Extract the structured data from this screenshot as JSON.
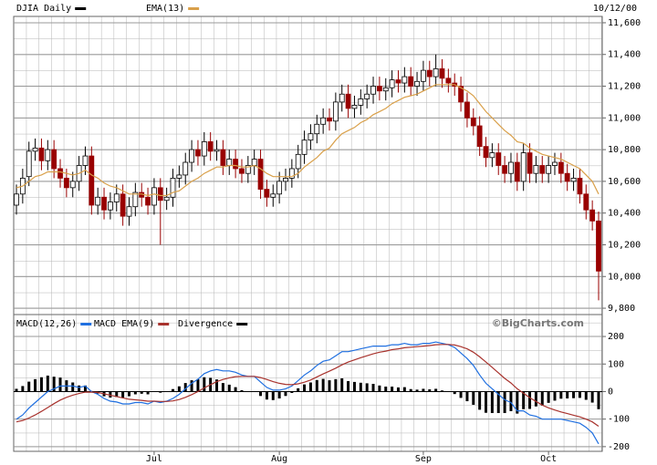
{
  "chart_data": [
    {
      "type": "candlestick",
      "date_label": "10/12/00",
      "categories": [
        null,
        null,
        null,
        null,
        null,
        null,
        null,
        null,
        null,
        null,
        null,
        null,
        null,
        null,
        null,
        null,
        null,
        null,
        null,
        null,
        null,
        null,
        "Jul",
        null,
        null,
        null,
        null,
        null,
        null,
        null,
        null,
        null,
        null,
        null,
        null,
        null,
        null,
        null,
        null,
        null,
        null,
        null,
        "Aug",
        null,
        null,
        null,
        null,
        null,
        null,
        null,
        null,
        null,
        null,
        null,
        null,
        null,
        null,
        null,
        null,
        null,
        null,
        null,
        null,
        null,
        null,
        "Sep",
        null,
        null,
        null,
        null,
        null,
        null,
        null,
        null,
        null,
        null,
        null,
        null,
        null,
        null,
        null,
        null,
        null,
        null,
        null,
        "Oct",
        null,
        null,
        null,
        null,
        null,
        null,
        null,
        null
      ],
      "series": [
        {
          "name": "DJIA Daily",
          "color": "#000000",
          "down_color": "#990000",
          "open": [
            10450,
            10520,
            10630,
            10790,
            10810,
            10730,
            10800,
            10680,
            10620,
            10560,
            10600,
            10700,
            10760,
            10450,
            10500,
            10420,
            10470,
            10520,
            10380,
            10440,
            10530,
            10500,
            10450,
            10560,
            10480,
            10500,
            10620,
            10640,
            10720,
            10800,
            10760,
            10850,
            10790,
            10800,
            10700,
            10740,
            10680,
            10650,
            10700,
            10740,
            10550,
            10500,
            10520,
            10600,
            10620,
            10680,
            10770,
            10860,
            10900,
            10960,
            11000,
            10980,
            11100,
            11150,
            11060,
            11080,
            11120,
            11150,
            11200,
            11170,
            11190,
            11240,
            11220,
            11260,
            11200,
            11230,
            11300,
            11260,
            11310,
            11250,
            11220,
            11200,
            11100,
            11000,
            10950,
            10820,
            10750,
            10780,
            10700,
            10650,
            10720,
            10600,
            10780,
            10650,
            10700,
            10650,
            10700,
            10720,
            10650,
            10600,
            10620,
            10520,
            10420,
            10350
          ],
          "high": [
            10580,
            10680,
            10850,
            10870,
            10870,
            10860,
            10860,
            10740,
            10680,
            10660,
            10760,
            10820,
            10820,
            10560,
            10560,
            10530,
            10580,
            10580,
            10500,
            10590,
            10590,
            10560,
            10620,
            10620,
            10560,
            10680,
            10700,
            10780,
            10860,
            10860,
            10910,
            10910,
            10860,
            10860,
            10800,
            10800,
            10740,
            10760,
            10800,
            10800,
            10610,
            10580,
            10660,
            10680,
            10740,
            10830,
            10920,
            10960,
            11020,
            11060,
            11060,
            11160,
            11210,
            11210,
            11140,
            11180,
            11210,
            11260,
            11260,
            11250,
            11300,
            11300,
            11320,
            11320,
            11290,
            11360,
            11360,
            11400,
            11370,
            11310,
            11280,
            11260,
            11160,
            11060,
            11010,
            10880,
            10840,
            10840,
            10760,
            10780,
            10780,
            10840,
            10840,
            10760,
            10760,
            10760,
            10780,
            10780,
            10710,
            10680,
            10680,
            10580,
            10480,
            10410
          ],
          "low": [
            10390,
            10460,
            10570,
            10730,
            10670,
            10670,
            10620,
            10560,
            10500,
            10500,
            10540,
            10640,
            10390,
            10390,
            10360,
            10360,
            10410,
            10320,
            10320,
            10380,
            10440,
            10390,
            10390,
            10200,
            10420,
            10440,
            10560,
            10580,
            10660,
            10700,
            10700,
            10730,
            10730,
            10640,
            10640,
            10620,
            10590,
            10590,
            10640,
            10490,
            10440,
            10440,
            10460,
            10540,
            10560,
            10620,
            10710,
            10800,
            10840,
            10900,
            10920,
            10920,
            11040,
            11000,
            11000,
            11020,
            11060,
            11090,
            11110,
            11110,
            11130,
            11160,
            11160,
            11140,
            11140,
            11170,
            11200,
            11200,
            11190,
            11160,
            11140,
            11040,
            10940,
            10890,
            10760,
            10690,
            10690,
            10640,
            10590,
            10590,
            10540,
            10540,
            10590,
            10590,
            10590,
            10590,
            10640,
            10590,
            10540,
            10540,
            10460,
            10360,
            10290,
            9850
          ],
          "close": [
            10520,
            10620,
            10790,
            10810,
            10730,
            10800,
            10680,
            10620,
            10560,
            10600,
            10700,
            10760,
            10450,
            10500,
            10420,
            10470,
            10520,
            10380,
            10440,
            10530,
            10500,
            10450,
            10560,
            10480,
            10500,
            10620,
            10640,
            10720,
            10800,
            10760,
            10850,
            10790,
            10800,
            10700,
            10740,
            10680,
            10650,
            10700,
            10740,
            10550,
            10500,
            10520,
            10600,
            10620,
            10680,
            10770,
            10860,
            10900,
            10960,
            11000,
            10980,
            11100,
            11150,
            11060,
            11080,
            11120,
            11150,
            11200,
            11170,
            11190,
            11240,
            11220,
            11260,
            11200,
            11230,
            11300,
            11260,
            11310,
            11250,
            11220,
            11200,
            11100,
            11000,
            10950,
            10820,
            10750,
            10780,
            10700,
            10650,
            10720,
            10600,
            10780,
            10650,
            10700,
            10650,
            10700,
            10720,
            10650,
            10600,
            10620,
            10520,
            10420,
            10350,
            10034
          ]
        },
        {
          "name": "EMA(13)",
          "type": "line",
          "color": "#d9a04a",
          "values": [
            10560,
            10570,
            10600,
            10630,
            10640,
            10660,
            10660,
            10660,
            10650,
            10640,
            10650,
            10670,
            10640,
            10620,
            10590,
            10570,
            10560,
            10540,
            10520,
            10520,
            10520,
            10510,
            10520,
            10510,
            10510,
            10530,
            10540,
            10570,
            10600,
            10620,
            10650,
            10670,
            10690,
            10690,
            10700,
            10700,
            10690,
            10690,
            10700,
            10680,
            10650,
            10630,
            10630,
            10630,
            10630,
            10650,
            10690,
            10720,
            10750,
            10790,
            10810,
            10860,
            10900,
            10920,
            10940,
            10970,
            10990,
            11020,
            11040,
            11060,
            11090,
            11110,
            11130,
            11140,
            11150,
            11170,
            11190,
            11210,
            11210,
            11210,
            11210,
            11190,
            11170,
            11140,
            11090,
            11040,
            11000,
            10960,
            10920,
            10890,
            10850,
            10840,
            10810,
            10790,
            10770,
            10760,
            10750,
            10740,
            10720,
            10700,
            10680,
            10640,
            10600,
            10520
          ]
        }
      ],
      "ylim": [
        9760,
        11640
      ],
      "yticks": [
        {
          "value": 9800,
          "label": "9,800"
        },
        {
          "value": 10000,
          "label": "10,000"
        },
        {
          "value": 10200,
          "label": "10,200"
        },
        {
          "value": 10400,
          "label": "10,400"
        },
        {
          "value": 10600,
          "label": "10,600"
        },
        {
          "value": 10800,
          "label": "10,800"
        },
        {
          "value": 11000,
          "label": "11,000"
        },
        {
          "value": 11200,
          "label": "11,200"
        },
        {
          "value": 11400,
          "label": "11,400"
        },
        {
          "value": 11600,
          "label": "11,600"
        }
      ]
    },
    {
      "type": "macd",
      "watermark": "©BigCharts.com",
      "series": [
        {
          "name": "MACD(12,26)",
          "type": "line",
          "color": "#1f6fe0",
          "values": [
            -100,
            -85,
            -60,
            -40,
            -20,
            0,
            10,
            20,
            20,
            20,
            15,
            20,
            0,
            -10,
            -25,
            -35,
            -38,
            -45,
            -45,
            -40,
            -40,
            -45,
            -35,
            -40,
            -35,
            -25,
            -10,
            10,
            30,
            45,
            65,
            75,
            80,
            75,
            75,
            70,
            60,
            55,
            55,
            35,
            15,
            5,
            5,
            10,
            20,
            40,
            60,
            75,
            95,
            110,
            115,
            130,
            145,
            145,
            150,
            155,
            160,
            165,
            165,
            165,
            170,
            170,
            175,
            170,
            170,
            175,
            175,
            180,
            175,
            170,
            160,
            140,
            120,
            95,
            60,
            30,
            10,
            -10,
            -30,
            -40,
            -70,
            -70,
            -85,
            -90,
            -100,
            -100,
            -100,
            -100,
            -105,
            -110,
            -115,
            -130,
            -150,
            -190
          ]
        },
        {
          "name": "MACD EMA(9)",
          "type": "line",
          "color": "#a8322d",
          "values": [
            -110,
            -105,
            -96,
            -85,
            -72,
            -58,
            -44,
            -31,
            -21,
            -13,
            -7,
            -2,
            -2,
            -3,
            -8,
            -13,
            -18,
            -23,
            -28,
            -30,
            -32,
            -35,
            -35,
            -36,
            -36,
            -34,
            -29,
            -21,
            -11,
            0,
            13,
            25,
            36,
            44,
            50,
            54,
            55,
            55,
            55,
            51,
            44,
            36,
            30,
            26,
            25,
            28,
            34,
            42,
            53,
            64,
            74,
            85,
            97,
            107,
            115,
            123,
            130,
            137,
            143,
            147,
            152,
            155,
            159,
            161,
            163,
            165,
            167,
            170,
            171,
            171,
            169,
            163,
            155,
            143,
            126,
            107,
            88,
            68,
            48,
            31,
            10,
            -6,
            -22,
            -36,
            -49,
            -59,
            -67,
            -74,
            -80,
            -86,
            -92,
            -100,
            -110,
            -126
          ]
        },
        {
          "name": "Divergence",
          "type": "bar",
          "color": "#000000",
          "values": [
            10,
            20,
            36,
            45,
            52,
            58,
            54,
            51,
            41,
            33,
            22,
            22,
            2,
            -7,
            -17,
            -22,
            -20,
            -22,
            -17,
            -10,
            -8,
            -10,
            0,
            -4,
            1,
            9,
            19,
            31,
            41,
            45,
            52,
            50,
            44,
            31,
            25,
            16,
            5,
            0,
            0,
            -16,
            -29,
            -31,
            -25,
            -16,
            -5,
            12,
            26,
            33,
            42,
            46,
            41,
            45,
            48,
            38,
            35,
            32,
            30,
            28,
            22,
            18,
            18,
            15,
            16,
            9,
            7,
            10,
            8,
            10,
            4,
            -1,
            -9,
            -23,
            -35,
            -48,
            -66,
            -77,
            -78,
            -78,
            -78,
            -71,
            -80,
            -64,
            -63,
            -54,
            -51,
            -41,
            -33,
            -26,
            -25,
            -24,
            -23,
            -30,
            -40,
            -64
          ]
        }
      ],
      "ylim": [
        -217,
        273
      ],
      "yticks": [
        200,
        100,
        0,
        -100,
        -200
      ]
    }
  ]
}
